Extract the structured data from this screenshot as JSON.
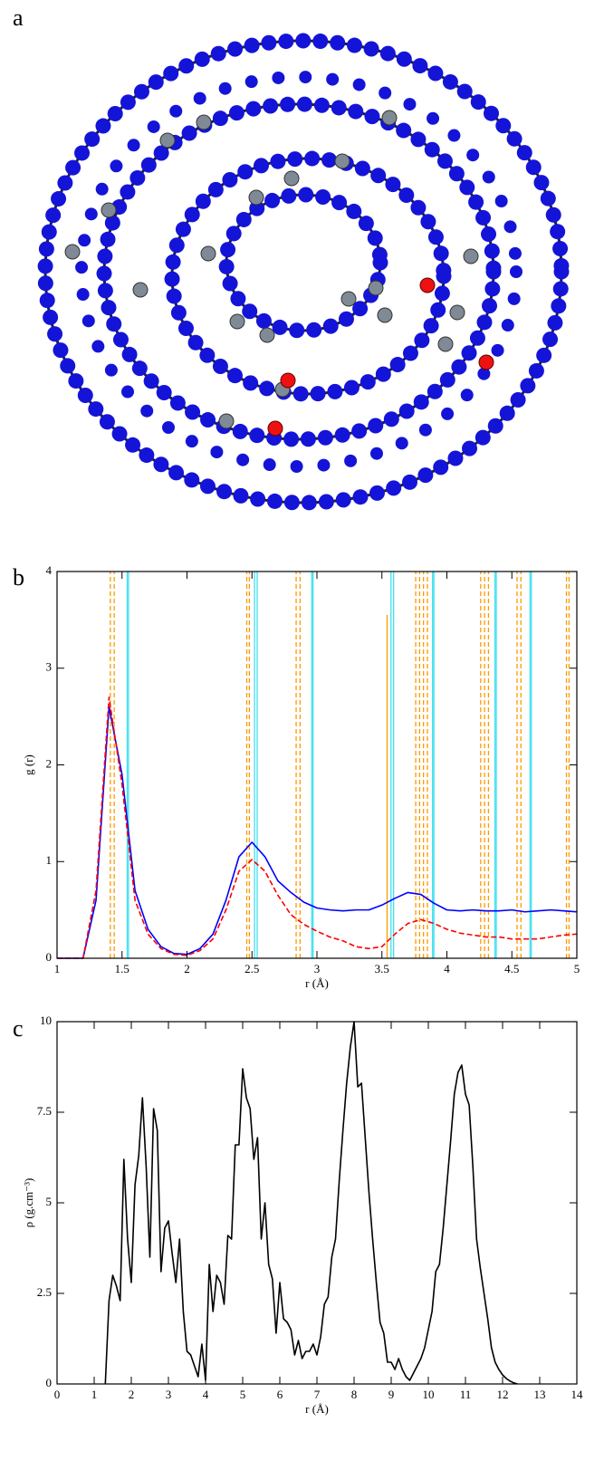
{
  "image": {
    "label": "a"
  },
  "chart_data": [
    {
      "type": "line",
      "panel_label": "b",
      "xlabel": "r (Å)",
      "ylabel": "g (r)",
      "xlim": [
        1,
        5
      ],
      "ylim": [
        0,
        4
      ],
      "xticks": [
        1,
        1.5,
        2,
        2.5,
        3,
        3.5,
        4,
        4.5,
        5
      ],
      "yticks": [
        0,
        1,
        2,
        3,
        4
      ],
      "x": [
        1.0,
        1.1,
        1.2,
        1.3,
        1.4,
        1.5,
        1.6,
        1.7,
        1.8,
        1.9,
        2.0,
        2.1,
        2.2,
        2.3,
        2.4,
        2.5,
        2.6,
        2.7,
        2.8,
        2.9,
        3.0,
        3.1,
        3.2,
        3.3,
        3.4,
        3.5,
        3.6,
        3.7,
        3.8,
        3.9,
        4.0,
        4.1,
        4.2,
        4.3,
        4.4,
        4.5,
        4.6,
        4.7,
        4.8,
        4.9,
        5.0
      ],
      "series": [
        {
          "color": "#0000ff",
          "dash": false,
          "values": [
            0,
            0,
            0,
            0.6,
            2.6,
            1.9,
            0.7,
            0.3,
            0.12,
            0.05,
            0.04,
            0.1,
            0.25,
            0.6,
            1.05,
            1.2,
            1.05,
            0.8,
            0.68,
            0.58,
            0.52,
            0.5,
            0.49,
            0.5,
            0.5,
            0.55,
            0.62,
            0.68,
            0.66,
            0.57,
            0.5,
            0.49,
            0.5,
            0.49,
            0.49,
            0.5,
            0.48,
            0.49,
            0.5,
            0.49,
            0.48
          ]
        },
        {
          "color": "#ff0000",
          "dash": true,
          "values": [
            0,
            0,
            0,
            0.7,
            2.7,
            1.8,
            0.6,
            0.25,
            0.1,
            0.04,
            0.03,
            0.08,
            0.2,
            0.5,
            0.9,
            1.02,
            0.9,
            0.65,
            0.45,
            0.35,
            0.28,
            0.22,
            0.18,
            0.12,
            0.1,
            0.12,
            0.25,
            0.36,
            0.4,
            0.36,
            0.3,
            0.26,
            0.24,
            0.22,
            0.22,
            0.2,
            0.2,
            0.2,
            0.22,
            0.24,
            0.25
          ]
        }
      ],
      "vlines": [
        {
          "color": "#ff9900",
          "dash": true,
          "x": [
            1.41,
            1.44,
            2.46,
            2.48,
            2.84,
            2.87,
            3.76,
            3.79,
            3.82,
            3.85,
            4.26,
            4.29,
            4.32,
            4.54,
            4.57,
            4.92,
            4.94
          ]
        },
        {
          "color": "#ff9900",
          "dash": false,
          "x": [
            3.54
          ],
          "ytop": 3.55
        },
        {
          "color": "#40e0f0",
          "dash": false,
          "x": [
            1.54,
            1.55,
            2.52,
            2.54,
            2.96,
            2.97,
            3.57,
            3.59,
            3.89,
            3.9,
            4.37,
            4.38,
            4.64,
            4.65
          ]
        }
      ]
    },
    {
      "type": "line",
      "panel_label": "c",
      "xlabel": "r (Å)",
      "ylabel": "ρ (g.cm⁻³)",
      "xlim": [
        0,
        14
      ],
      "ylim": [
        0,
        10
      ],
      "xticks": [
        0,
        1,
        2,
        3,
        4,
        5,
        6,
        7,
        8,
        9,
        10,
        11,
        12,
        13,
        14
      ],
      "yticks": [
        0,
        2.5,
        5,
        7.5,
        10
      ],
      "x": [
        1.3,
        1.4,
        1.5,
        1.6,
        1.7,
        1.8,
        1.9,
        2.0,
        2.1,
        2.2,
        2.3,
        2.4,
        2.5,
        2.6,
        2.7,
        2.8,
        2.9,
        3.0,
        3.1,
        3.2,
        3.3,
        3.4,
        3.5,
        3.6,
        3.7,
        3.8,
        3.9,
        4.0,
        4.1,
        4.2,
        4.3,
        4.4,
        4.5,
        4.6,
        4.7,
        4.8,
        4.9,
        5.0,
        5.1,
        5.2,
        5.3,
        5.4,
        5.5,
        5.6,
        5.7,
        5.8,
        5.9,
        6.0,
        6.1,
        6.2,
        6.3,
        6.4,
        6.5,
        6.6,
        6.7,
        6.8,
        6.9,
        7.0,
        7.1,
        7.2,
        7.3,
        7.4,
        7.5,
        7.6,
        7.7,
        7.8,
        7.9,
        8.0,
        8.1,
        8.2,
        8.3,
        8.4,
        8.5,
        8.6,
        8.7,
        8.8,
        8.9,
        9.0,
        9.1,
        9.2,
        9.3,
        9.4,
        9.5,
        9.6,
        9.7,
        9.8,
        9.9,
        10.0,
        10.1,
        10.2,
        10.3,
        10.4,
        10.5,
        10.6,
        10.7,
        10.8,
        10.9,
        11.0,
        11.1,
        11.2,
        11.3,
        11.4,
        11.5,
        11.6,
        11.7,
        11.8,
        11.9,
        12.0,
        12.1,
        12.2,
        12.3,
        12.4
      ],
      "series": [
        {
          "color": "#000000",
          "dash": false,
          "values": [
            0,
            2.3,
            3.0,
            2.7,
            2.3,
            6.2,
            4.0,
            2.8,
            5.5,
            6.3,
            7.9,
            6.0,
            3.5,
            7.6,
            7.0,
            3.1,
            4.3,
            4.5,
            3.6,
            2.8,
            4.0,
            2.0,
            0.9,
            0.8,
            0.5,
            0.2,
            1.1,
            0.1,
            3.3,
            2.0,
            3.0,
            2.8,
            2.2,
            4.1,
            4.0,
            6.6,
            6.6,
            8.7,
            7.9,
            7.6,
            6.2,
            6.8,
            4.0,
            5.0,
            3.3,
            2.9,
            1.4,
            2.8,
            1.8,
            1.7,
            1.5,
            0.8,
            1.2,
            0.7,
            0.9,
            0.9,
            1.1,
            0.8,
            1.3,
            2.2,
            2.4,
            3.5,
            4.0,
            5.6,
            7.0,
            8.3,
            9.3,
            10.0,
            8.2,
            8.3,
            6.8,
            5.3,
            4.0,
            2.8,
            1.7,
            1.4,
            0.6,
            0.6,
            0.4,
            0.7,
            0.4,
            0.2,
            0.1,
            0.3,
            0.5,
            0.7,
            1.0,
            1.5,
            2.0,
            3.1,
            3.3,
            4.3,
            5.5,
            6.7,
            8.0,
            8.6,
            8.8,
            8.0,
            7.7,
            6.0,
            4.0,
            3.2,
            2.5,
            1.8,
            1.0,
            0.6,
            0.4,
            0.25,
            0.15,
            0.08,
            0.03,
            0
          ]
        }
      ]
    }
  ]
}
